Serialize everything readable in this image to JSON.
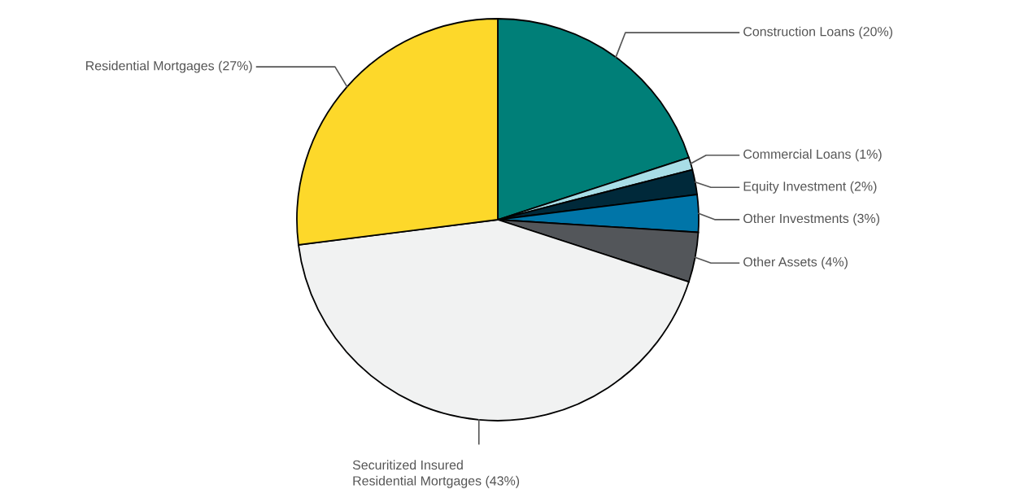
{
  "chart_data": {
    "type": "pie",
    "categories": [
      "Construction Loans (20%)",
      "Commercial Loans (1%)",
      "Equity Investment (2%)",
      "Other Investments (3%)",
      "Other Assets (4%)",
      "Securitized Insured\nResidential Mortgages (43%)",
      "Residential Mortgages (27%)"
    ],
    "values": [
      20,
      1,
      2,
      3,
      4,
      43,
      27
    ],
    "colors": [
      "#007f78",
      "#a8dde6",
      "#00293a",
      "#0075a8",
      "#53565a",
      "#f1f2f2",
      "#fdd82a"
    ]
  }
}
